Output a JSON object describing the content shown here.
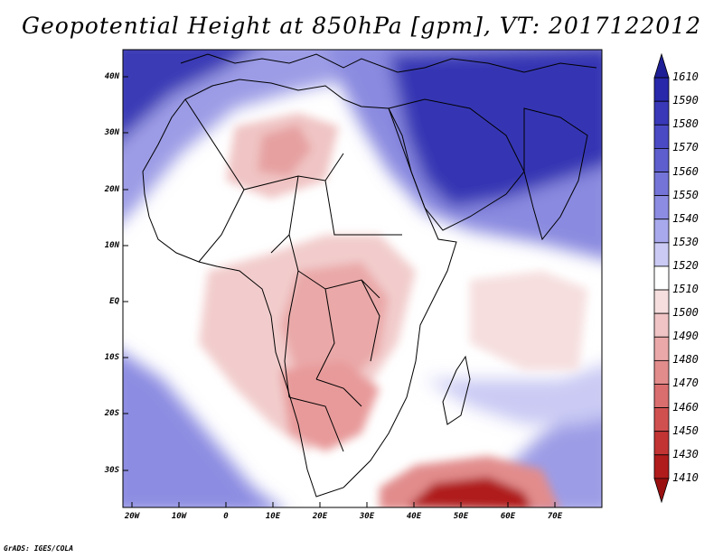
{
  "title": "Geopotential Height at 850hPa [gpm], VT: 2017122012",
  "credit": "GrADS: IGES/COLA",
  "map": {
    "variable": "Geopotential Height",
    "level": "850hPa",
    "units": "gpm",
    "valid_time": "2017122012",
    "lat_ticks": [
      "40N",
      "30N",
      "20N",
      "10N",
      "EQ",
      "10S",
      "20S",
      "30S"
    ],
    "lon_ticks": [
      "20W",
      "10W",
      "0",
      "10E",
      "20E",
      "30E",
      "40E",
      "50E",
      "60E",
      "70E"
    ]
  },
  "colorbar": {
    "levels": [
      "1610",
      "1590",
      "1580",
      "1570",
      "1560",
      "1550",
      "1540",
      "1530",
      "1520",
      "1510",
      "1500",
      "1490",
      "1480",
      "1470",
      "1460",
      "1450",
      "1430",
      "1410"
    ],
    "colors": [
      "#1e1e96",
      "#2828aa",
      "#3838b8",
      "#4a4ac4",
      "#5e5ece",
      "#7474d8",
      "#8c8ce2",
      "#a8a8ec",
      "#cacaf4",
      "#ffffff",
      "#f6dede",
      "#f0c4c4",
      "#eaa8a8",
      "#e28c8c",
      "#da6e6e",
      "#d05050",
      "#c23434",
      "#b01c1c",
      "#9a1010"
    ],
    "extend": "both"
  },
  "colors": {
    "high": "#1e1e96",
    "neutral": "#ffffff",
    "low": "#9a1010",
    "coast": "#000000"
  }
}
